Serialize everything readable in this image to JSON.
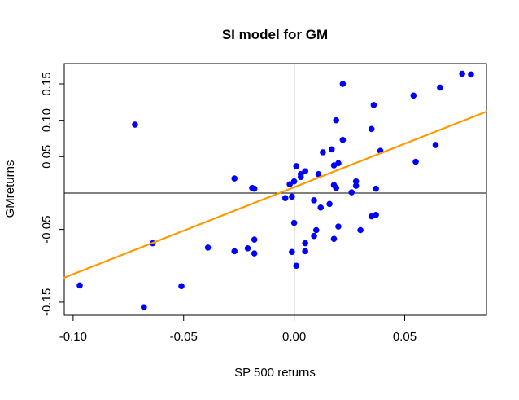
{
  "chart_data": {
    "type": "scatter",
    "title": "SI model for GM",
    "xlabel": "SP 500 returns",
    "ylabel": "GMreturns",
    "xlim": [
      -0.104,
      0.087
    ],
    "ylim": [
      -0.168,
      0.178
    ],
    "x_ticks": [
      -0.1,
      -0.05,
      0.0,
      0.05
    ],
    "x_tick_labels": [
      "-0.10",
      "-0.05",
      "0.00",
      "0.05"
    ],
    "y_ticks": [
      -0.15,
      -0.05,
      0.05,
      0.1,
      0.15
    ],
    "y_tick_labels": [
      "-0.15",
      "-0.05",
      "0.05",
      "0.10",
      "0.15"
    ],
    "grid": false,
    "legend": "none",
    "reference_lines": {
      "x": 0,
      "y": 0
    },
    "colors": {
      "points": "#0000ff",
      "fit_line": "#ff9900",
      "axes": "#000000",
      "background": "#ffffff"
    },
    "fit_line": {
      "intercept": 0.008,
      "slope": 1.195
    },
    "points": [
      {
        "x": -0.097,
        "y": -0.127
      },
      {
        "x": -0.072,
        "y": 0.094
      },
      {
        "x": -0.068,
        "y": -0.157
      },
      {
        "x": -0.064,
        "y": -0.069
      },
      {
        "x": -0.051,
        "y": -0.128
      },
      {
        "x": -0.039,
        "y": -0.075
      },
      {
        "x": -0.027,
        "y": 0.02
      },
      {
        "x": -0.027,
        "y": -0.08
      },
      {
        "x": -0.021,
        "y": -0.076
      },
      {
        "x": -0.019,
        "y": 0.007
      },
      {
        "x": -0.018,
        "y": 0.006
      },
      {
        "x": -0.018,
        "y": -0.064
      },
      {
        "x": -0.018,
        "y": -0.083
      },
      {
        "x": -0.004,
        "y": -0.007
      },
      {
        "x": -0.002,
        "y": 0.012
      },
      {
        "x": -0.001,
        "y": -0.005
      },
      {
        "x": -0.001,
        "y": -0.081
      },
      {
        "x": 0.0,
        "y": 0.016
      },
      {
        "x": 0.0,
        "y": -0.041
      },
      {
        "x": 0.001,
        "y": 0.037
      },
      {
        "x": 0.001,
        "y": -0.1
      },
      {
        "x": 0.003,
        "y": 0.022
      },
      {
        "x": 0.003,
        "y": 0.026
      },
      {
        "x": 0.005,
        "y": 0.03
      },
      {
        "x": 0.005,
        "y": -0.069
      },
      {
        "x": 0.005,
        "y": -0.08
      },
      {
        "x": 0.009,
        "y": -0.01
      },
      {
        "x": 0.009,
        "y": -0.059
      },
      {
        "x": 0.01,
        "y": -0.051
      },
      {
        "x": 0.011,
        "y": 0.026
      },
      {
        "x": 0.012,
        "y": -0.02
      },
      {
        "x": 0.013,
        "y": 0.056
      },
      {
        "x": 0.016,
        "y": -0.015
      },
      {
        "x": 0.017,
        "y": 0.06
      },
      {
        "x": 0.018,
        "y": 0.038
      },
      {
        "x": 0.018,
        "y": 0.011
      },
      {
        "x": 0.018,
        "y": -0.063
      },
      {
        "x": 0.019,
        "y": 0.1
      },
      {
        "x": 0.019,
        "y": 0.007
      },
      {
        "x": 0.02,
        "y": 0.041
      },
      {
        "x": 0.02,
        "y": -0.046
      },
      {
        "x": 0.022,
        "y": 0.15
      },
      {
        "x": 0.022,
        "y": 0.073
      },
      {
        "x": 0.026,
        "y": 0.001
      },
      {
        "x": 0.028,
        "y": 0.01
      },
      {
        "x": 0.028,
        "y": 0.016
      },
      {
        "x": 0.03,
        "y": -0.051
      },
      {
        "x": 0.035,
        "y": 0.088
      },
      {
        "x": 0.035,
        "y": -0.032
      },
      {
        "x": 0.036,
        "y": 0.121
      },
      {
        "x": 0.037,
        "y": -0.03
      },
      {
        "x": 0.037,
        "y": 0.006
      },
      {
        "x": 0.039,
        "y": 0.058
      },
      {
        "x": 0.054,
        "y": 0.134
      },
      {
        "x": 0.055,
        "y": 0.043
      },
      {
        "x": 0.064,
        "y": 0.066
      },
      {
        "x": 0.066,
        "y": 0.145
      },
      {
        "x": 0.076,
        "y": 0.164
      },
      {
        "x": 0.08,
        "y": 0.163
      }
    ]
  }
}
